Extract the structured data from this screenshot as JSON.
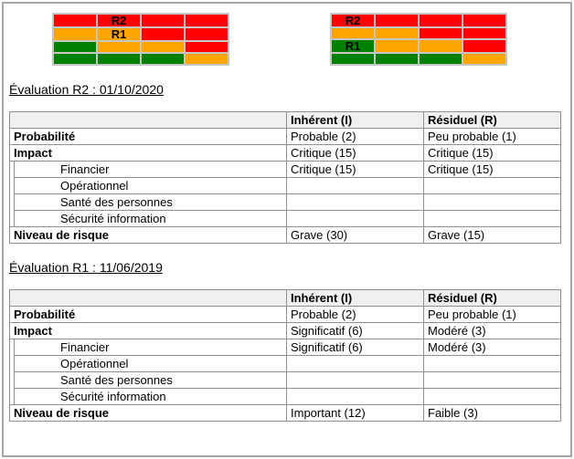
{
  "colors": {
    "red": "#ff0000",
    "orange": "#ffa500",
    "green": "#008000",
    "matrix_border": "#c6c6c6",
    "table_border": "#909090",
    "header_bg": "#f0f0f0",
    "page_border": "#a6a6a6"
  },
  "matrices": [
    {
      "name": "matrix-left",
      "cells": [
        [
          "red",
          "red",
          "red",
          "red"
        ],
        [
          "orange",
          "orange",
          "red",
          "red"
        ],
        [
          "green",
          "orange",
          "orange",
          "red"
        ],
        [
          "green",
          "green",
          "green",
          "orange"
        ]
      ],
      "labels": [
        {
          "row": 0,
          "col": 1,
          "text": "R2"
        },
        {
          "row": 1,
          "col": 1,
          "text": "R1"
        }
      ]
    },
    {
      "name": "matrix-right",
      "cells": [
        [
          "red",
          "red",
          "red",
          "red"
        ],
        [
          "orange",
          "orange",
          "red",
          "red"
        ],
        [
          "green",
          "orange",
          "orange",
          "red"
        ],
        [
          "green",
          "green",
          "green",
          "orange"
        ]
      ],
      "labels": [
        {
          "row": 0,
          "col": 0,
          "text": "R2"
        },
        {
          "row": 2,
          "col": 0,
          "text": "R1"
        }
      ]
    }
  ],
  "sections": [
    {
      "heading": "Évaluation R2 : 01/10/2020",
      "table": {
        "columns": [
          "",
          "Inhérent (I)",
          "Résiduel (R)"
        ],
        "rows": [
          {
            "label": "Probabilité",
            "bold": true,
            "indent": false,
            "inherent": "Probable (2)",
            "residual": "Peu probable (1)"
          },
          {
            "label": "Impact",
            "bold": true,
            "indent": false,
            "inherent": "Critique (15)",
            "residual": "Critique (15)"
          },
          {
            "label": "Financier",
            "bold": false,
            "indent": true,
            "inherent": "Critique (15)",
            "residual": "Critique (15)"
          },
          {
            "label": "Opérationnel",
            "bold": false,
            "indent": true,
            "inherent": "",
            "residual": ""
          },
          {
            "label": "Santé des personnes",
            "bold": false,
            "indent": true,
            "inherent": "",
            "residual": ""
          },
          {
            "label": "Sécurité information",
            "bold": false,
            "indent": true,
            "inherent": "",
            "residual": ""
          },
          {
            "label": "Niveau de risque",
            "bold": true,
            "indent": false,
            "inherent": "Grave (30)",
            "residual": "Grave (15)"
          }
        ]
      }
    },
    {
      "heading": "Évaluation R1 : 11/06/2019",
      "table": {
        "columns": [
          "",
          "Inhérent (I)",
          "Résiduel (R)"
        ],
        "rows": [
          {
            "label": "Probabilité",
            "bold": true,
            "indent": false,
            "inherent": "Probable (2)",
            "residual": "Peu probable (1)"
          },
          {
            "label": "Impact",
            "bold": true,
            "indent": false,
            "inherent": "Significatif (6)",
            "residual": "Modéré (3)"
          },
          {
            "label": "Financier",
            "bold": false,
            "indent": true,
            "inherent": "Significatif (6)",
            "residual": "Modéré (3)"
          },
          {
            "label": "Opérationnel",
            "bold": false,
            "indent": true,
            "inherent": "",
            "residual": ""
          },
          {
            "label": "Santé des personnes",
            "bold": false,
            "indent": true,
            "inherent": "",
            "residual": ""
          },
          {
            "label": "Sécurité information",
            "bold": false,
            "indent": true,
            "inherent": "",
            "residual": ""
          },
          {
            "label": "Niveau de risque",
            "bold": true,
            "indent": false,
            "inherent": "Important (12)",
            "residual": "Faible (3)"
          }
        ]
      }
    }
  ]
}
